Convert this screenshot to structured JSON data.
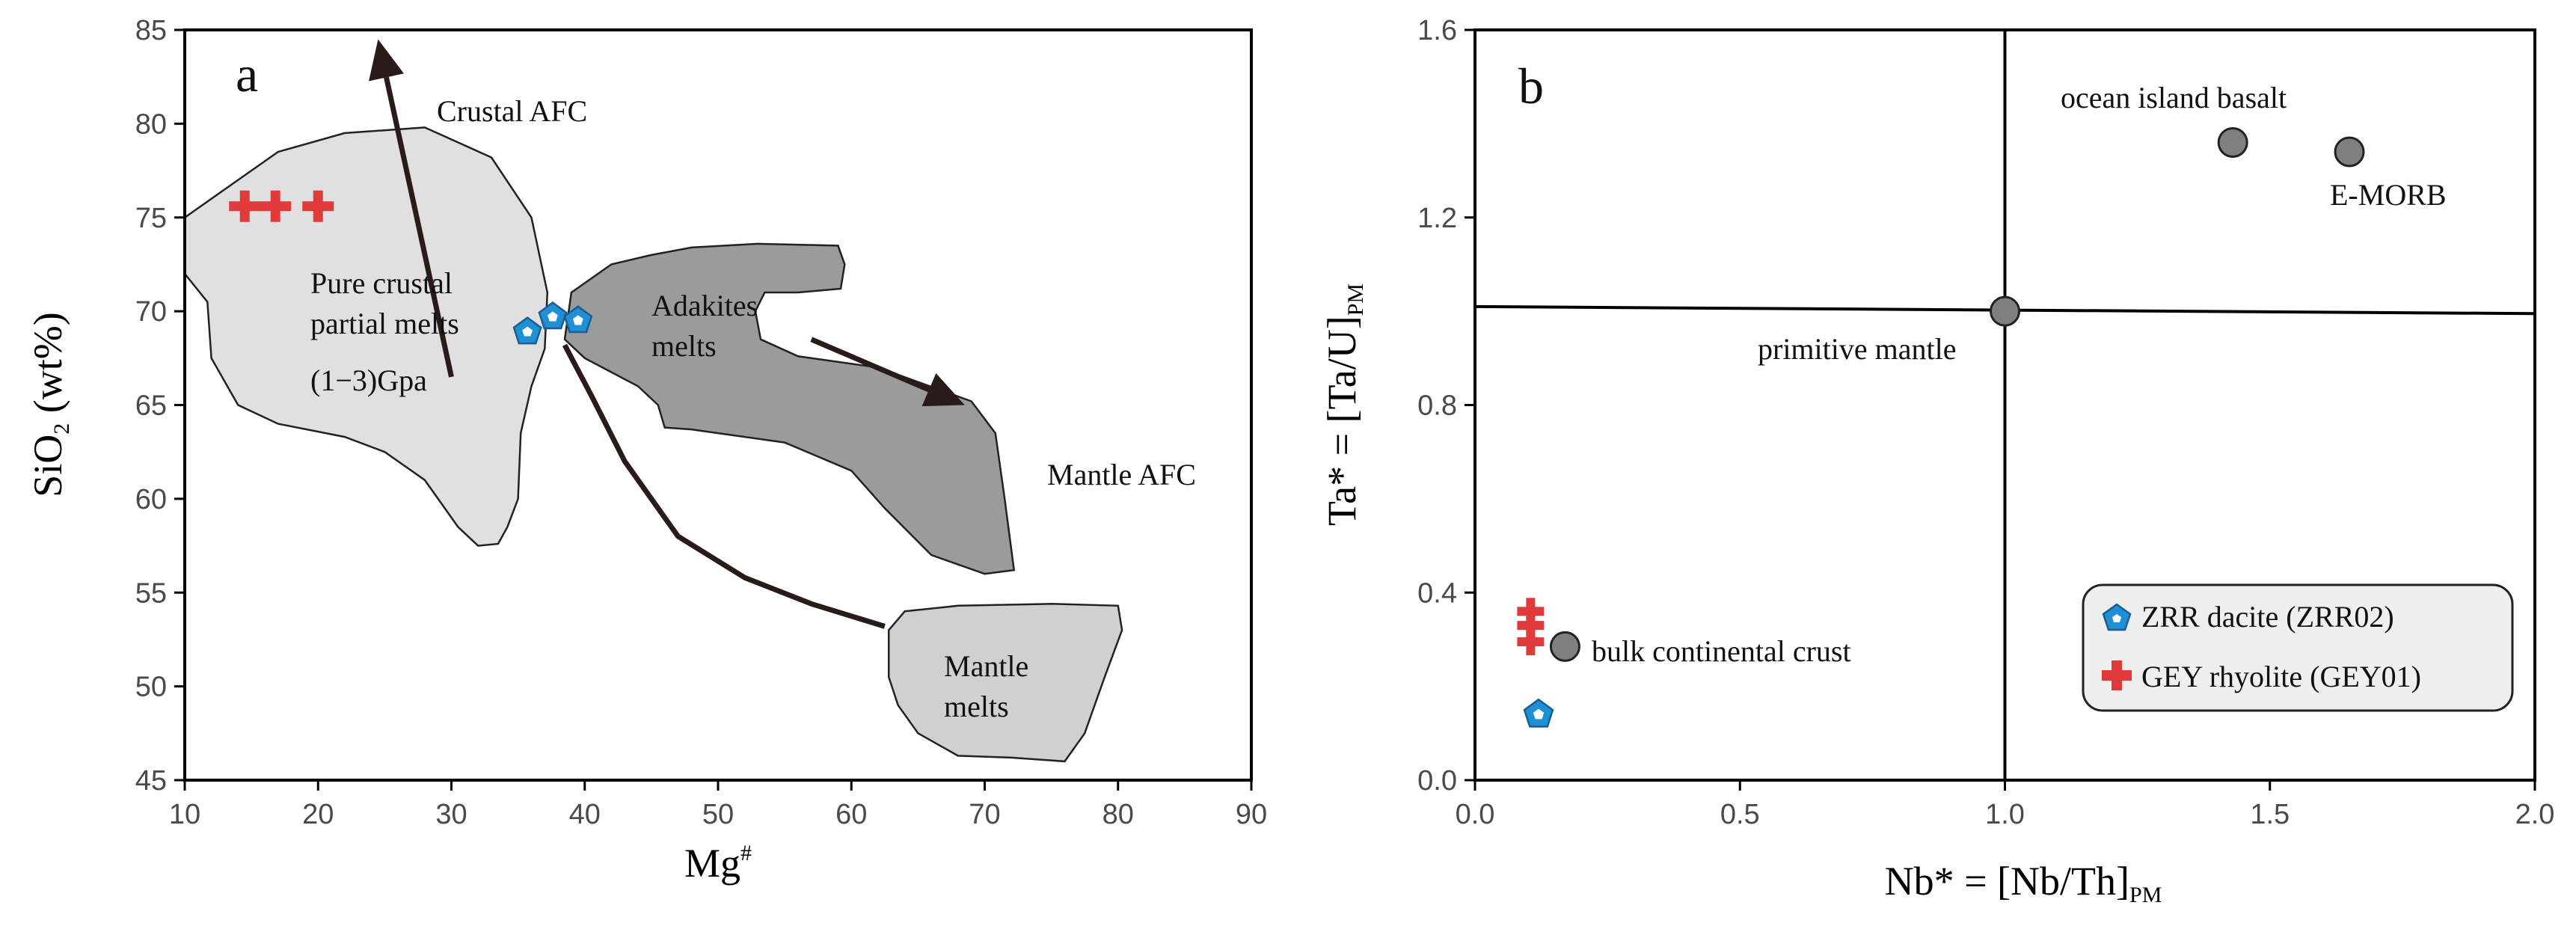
{
  "chart_data": [
    {
      "type": "scatter",
      "panel_label": "a",
      "xlabel": "Mg",
      "xlabel_sup": "#",
      "ylabel": "SiO",
      "ylabel_sub": "2",
      "ylabel_suffix": " (wt%)",
      "xlim": [
        10,
        90
      ],
      "ylim": [
        45,
        85
      ],
      "xticks": [
        "10",
        "20",
        "30",
        "40",
        "50",
        "60",
        "70",
        "80",
        "90"
      ],
      "yticks": [
        "45",
        "50",
        "55",
        "60",
        "65",
        "70",
        "75",
        "80",
        "85"
      ],
      "fields": [
        {
          "name": "Pure crustal partial melts (1−3)Gpa",
          "color": "#e0e0e0",
          "outline": [
            [
              10,
              75
            ],
            [
              13,
              76.5
            ],
            [
              17,
              78.5
            ],
            [
              22,
              79.5
            ],
            [
              28,
              79.8
            ],
            [
              33,
              78.2
            ],
            [
              36,
              75
            ],
            [
              37.2,
              71
            ],
            [
              37,
              68
            ],
            [
              36,
              66
            ],
            [
              35.2,
              63.5
            ],
            [
              35,
              60
            ],
            [
              34.2,
              58.5
            ],
            [
              33.5,
              57.6
            ],
            [
              32,
              57.5
            ],
            [
              30.5,
              58.5
            ],
            [
              28,
              61
            ],
            [
              25,
              62.5
            ],
            [
              22,
              63.3
            ],
            [
              17,
              64
            ],
            [
              14,
              65
            ],
            [
              12,
              67.5
            ],
            [
              11.7,
              70.5
            ],
            [
              10,
              72
            ]
          ],
          "labels": [
            "Pure crustal",
            "partial melts",
            "(1−3)Gpa"
          ]
        },
        {
          "name": "Adakites melts",
          "color": "#9b9b9b",
          "outline": [
            [
              38.5,
              68.5
            ],
            [
              39,
              71
            ],
            [
              42,
              72.5
            ],
            [
              45,
              73
            ],
            [
              48,
              73.4
            ],
            [
              53,
              73.6
            ],
            [
              59,
              73.5
            ],
            [
              59.5,
              72.5
            ],
            [
              59.2,
              71.2
            ],
            [
              56,
              71
            ],
            [
              53.5,
              71
            ],
            [
              52.8,
              70
            ],
            [
              53.2,
              68.5
            ],
            [
              56,
              67.6
            ],
            [
              62,
              67
            ],
            [
              69,
              65.2
            ],
            [
              70.8,
              63.5
            ],
            [
              71.5,
              60
            ],
            [
              72.2,
              56.2
            ],
            [
              70,
              56
            ],
            [
              66,
              57
            ],
            [
              62.5,
              59.5
            ],
            [
              60,
              61.5
            ],
            [
              55,
              63
            ],
            [
              48,
              63.7
            ],
            [
              46,
              63.8
            ],
            [
              45.5,
              65
            ],
            [
              44,
              66
            ],
            [
              40,
              67.5
            ]
          ],
          "labels": [
            "Adakites",
            "melts"
          ]
        },
        {
          "name": "Mantle melts",
          "color": "#d0d0d0",
          "outline": [
            [
              64,
              54
            ],
            [
              68,
              54.3
            ],
            [
              75,
              54.4
            ],
            [
              80,
              54.3
            ],
            [
              80.3,
              53
            ],
            [
              79,
              50.5
            ],
            [
              77.5,
              47.5
            ],
            [
              76,
              46
            ],
            [
              72,
              46.2
            ],
            [
              68,
              46.3
            ],
            [
              65,
              47.5
            ],
            [
              63.5,
              49
            ],
            [
              62.8,
              50.5
            ],
            [
              62.8,
              53
            ]
          ],
          "labels": [
            "Mantle",
            "melts"
          ]
        }
      ],
      "curve": [
        [
          38.5,
          68.2
        ],
        [
          40.5,
          65.5
        ],
        [
          43,
          62
        ],
        [
          47,
          58
        ],
        [
          52,
          55.8
        ],
        [
          57,
          54.4
        ],
        [
          62.5,
          53.2
        ]
      ],
      "arrows": [
        {
          "label": "Crustal AFC",
          "from": [
            30,
            66.5
          ],
          "to": [
            24.5,
            84.5
          ]
        },
        {
          "label": "Mantle AFC",
          "from": [
            57,
            68.5
          ],
          "to": [
            68.5,
            65
          ]
        }
      ],
      "series": [
        {
          "name": "GEY rhyolite (GEY01)",
          "marker": "cross",
          "color": "#e03a3a",
          "points": [
            [
              14.5,
              75.6
            ],
            [
              16.8,
              75.6
            ],
            [
              20,
              75.6
            ]
          ]
        },
        {
          "name": "ZRR dacite (ZRR02)",
          "marker": "pentagon",
          "color": "#1f8fd6",
          "points": [
            [
              35.7,
              68.9
            ],
            [
              37.6,
              69.7
            ],
            [
              39.5,
              69.5
            ]
          ]
        }
      ]
    },
    {
      "type": "scatter",
      "panel_label": "b",
      "xlabel": "Nb* = [Nb/Th]",
      "xlabel_sub": "PM",
      "ylabel": "Ta* = [Ta/U]",
      "ylabel_sub": "PM",
      "xlim": [
        0,
        2
      ],
      "ylim": [
        0,
        1.6
      ],
      "xticks": [
        "0.0",
        "0.5",
        "1.0",
        "1.5",
        "2.0"
      ],
      "yticks": [
        "0.0",
        "0.4",
        "0.8",
        "1.2",
        "1.6"
      ],
      "reference_lines": [
        {
          "type": "vertical",
          "x": 1.0
        },
        {
          "type": "line",
          "from": [
            0,
            1.01
          ],
          "to": [
            2,
            0.995
          ]
        }
      ],
      "reference_points": [
        {
          "label": "ocean island basalt",
          "x": 1.43,
          "y": 1.36
        },
        {
          "label": "E-MORB",
          "x": 1.65,
          "y": 1.34
        },
        {
          "label": "primitive mantle",
          "x": 1.0,
          "y": 1.0
        },
        {
          "label": "bulk continental crust",
          "x": 0.17,
          "y": 0.285
        }
      ],
      "series": [
        {
          "name": "GEY rhyolite (GEY01)",
          "marker": "cross",
          "color": "#e03a3a",
          "points": [
            [
              0.105,
              0.36
            ],
            [
              0.105,
              0.33
            ],
            [
              0.105,
              0.295
            ]
          ]
        },
        {
          "name": "ZRR dacite (ZRR02)",
          "marker": "pentagon",
          "color": "#1f8fd6",
          "points": [
            [
              0.12,
              0.14
            ]
          ]
        }
      ],
      "legend": {
        "position": "bottom-right",
        "entries": [
          {
            "marker": "pentagon",
            "color": "#1f8fd6",
            "label": "ZRR dacite (ZRR02)"
          },
          {
            "marker": "cross",
            "color": "#e03a3a",
            "label": "GEY rhyolite (GEY01)"
          }
        ]
      }
    }
  ]
}
